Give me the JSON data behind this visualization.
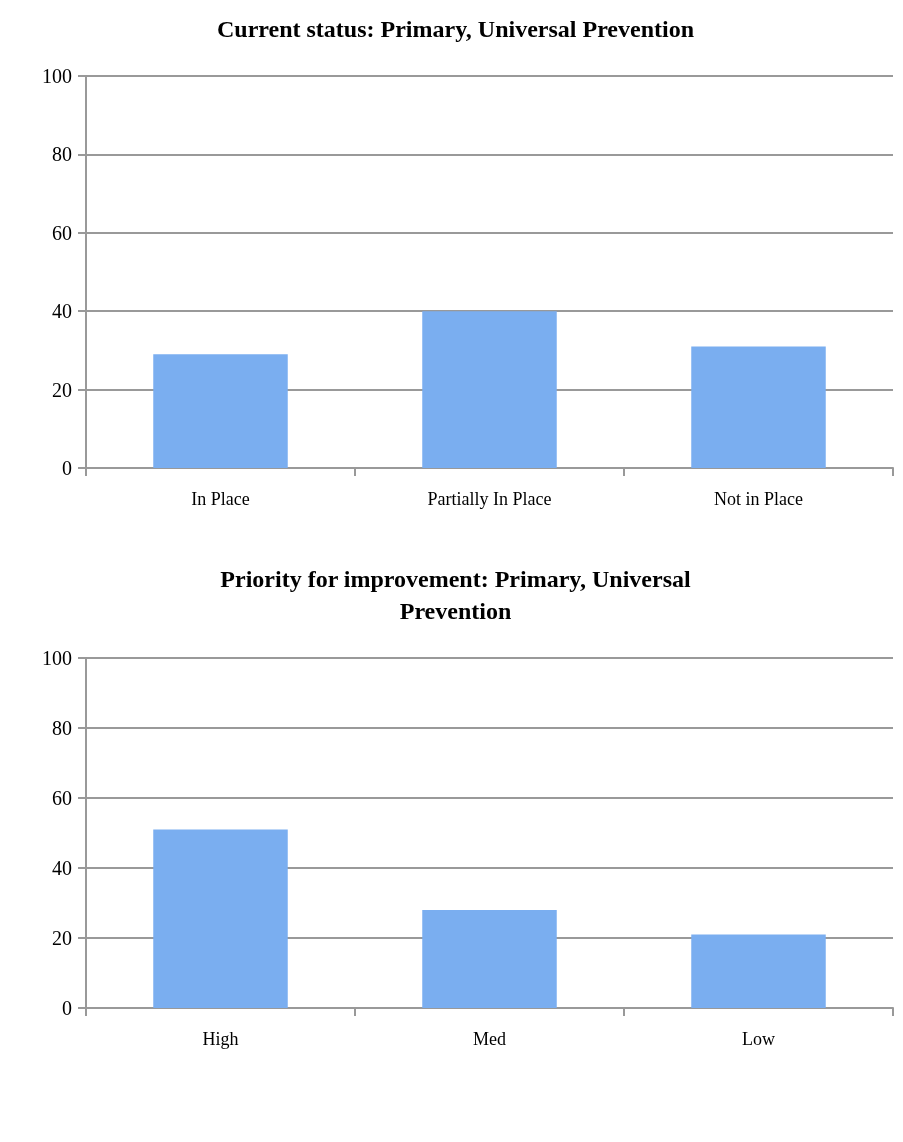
{
  "chart_data": [
    {
      "type": "bar",
      "title": "Current status: Primary, Universal Prevention",
      "categories": [
        "In Place",
        "Partially In Place",
        "Not in Place"
      ],
      "values": [
        29,
        40,
        31
      ],
      "color": "#7aaef0",
      "ylim": [
        0,
        100
      ],
      "yticks": [
        0,
        20,
        40,
        60,
        80,
        100
      ],
      "grid": "y"
    },
    {
      "type": "bar",
      "title": "Priority for improvement: Primary, Universal\nPrevention",
      "categories": [
        "High",
        "Med",
        "Low"
      ],
      "values": [
        51,
        28,
        21
      ],
      "color": "#7aaef0",
      "ylim": [
        0,
        100
      ],
      "yticks": [
        0,
        20,
        40,
        60,
        80,
        100
      ],
      "grid": "y"
    }
  ]
}
